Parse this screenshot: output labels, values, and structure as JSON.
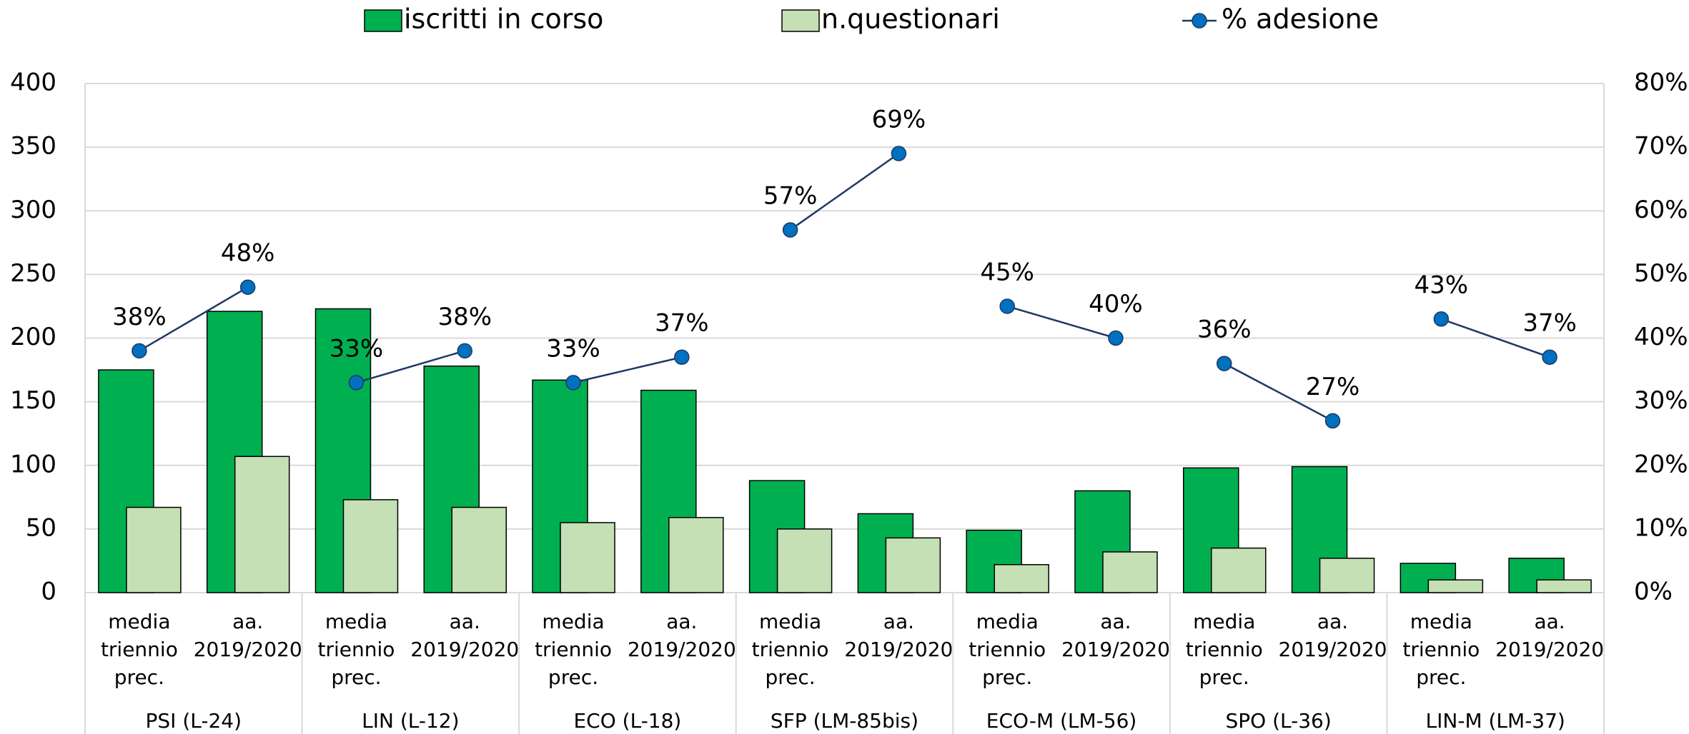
{
  "chart_data": {
    "type": "bar",
    "categories": [
      "media triennio prec.",
      "aa. 2019/2020",
      "media triennio prec.",
      "aa. 2019/2020",
      "media triennio prec.",
      "aa. 2019/2020",
      "media triennio prec.",
      "aa. 2019/2020",
      "media triennio prec.",
      "aa. 2019/2020",
      "media triennio prec.",
      "aa. 2019/2020",
      "media triennio prec.",
      "aa. 2019/2020"
    ],
    "groups": [
      "PSI (L-24)",
      "LIN (L-12)",
      "ECO (L-18)",
      "SFP (LM-85bis)",
      "ECO-M (LM-56)",
      "SPO (L-36)",
      "LIN-M (LM-37)"
    ],
    "series": [
      {
        "name": "iscritti in corso",
        "color": "#00b050",
        "values": [
          175,
          221,
          223,
          178,
          167,
          159,
          88,
          62,
          49,
          80,
          98,
          99,
          23,
          27
        ]
      },
      {
        "name": "n.questionari",
        "color": "#c5e0b4",
        "values": [
          67,
          107,
          73,
          67,
          55,
          59,
          50,
          43,
          22,
          32,
          35,
          27,
          10,
          10
        ]
      },
      {
        "name": "% adesione",
        "type": "line",
        "axis": "y2",
        "color": "#1f3864",
        "marker_color": "#0070c0",
        "values": [
          38,
          48,
          33,
          38,
          33,
          37,
          57,
          69,
          45,
          40,
          36,
          27,
          43,
          37
        ],
        "value_labels": [
          "38%",
          "48%",
          "33%",
          "38%",
          "33%",
          "37%",
          "57%",
          "69%",
          "45%",
          "40%",
          "36%",
          "27%",
          "43%",
          "37%"
        ]
      }
    ],
    "ylim": [
      0,
      400
    ],
    "yticks": [
      0,
      50,
      100,
      150,
      200,
      250,
      300,
      350,
      400
    ],
    "y2lim": [
      0,
      80
    ],
    "y2ticks": [
      {
        "value": 0,
        "label": "0%"
      },
      {
        "value": 10,
        "label": "10%"
      },
      {
        "value": 20,
        "label": "20%"
      },
      {
        "value": 30,
        "label": "30%"
      },
      {
        "value": 40,
        "label": "40%"
      },
      {
        "value": 50,
        "label": "50%"
      },
      {
        "value": 60,
        "label": "60%"
      },
      {
        "value": 70,
        "label": "70%"
      },
      {
        "value": 80,
        "label": "80%"
      }
    ],
    "grid": true,
    "legend": "top"
  }
}
